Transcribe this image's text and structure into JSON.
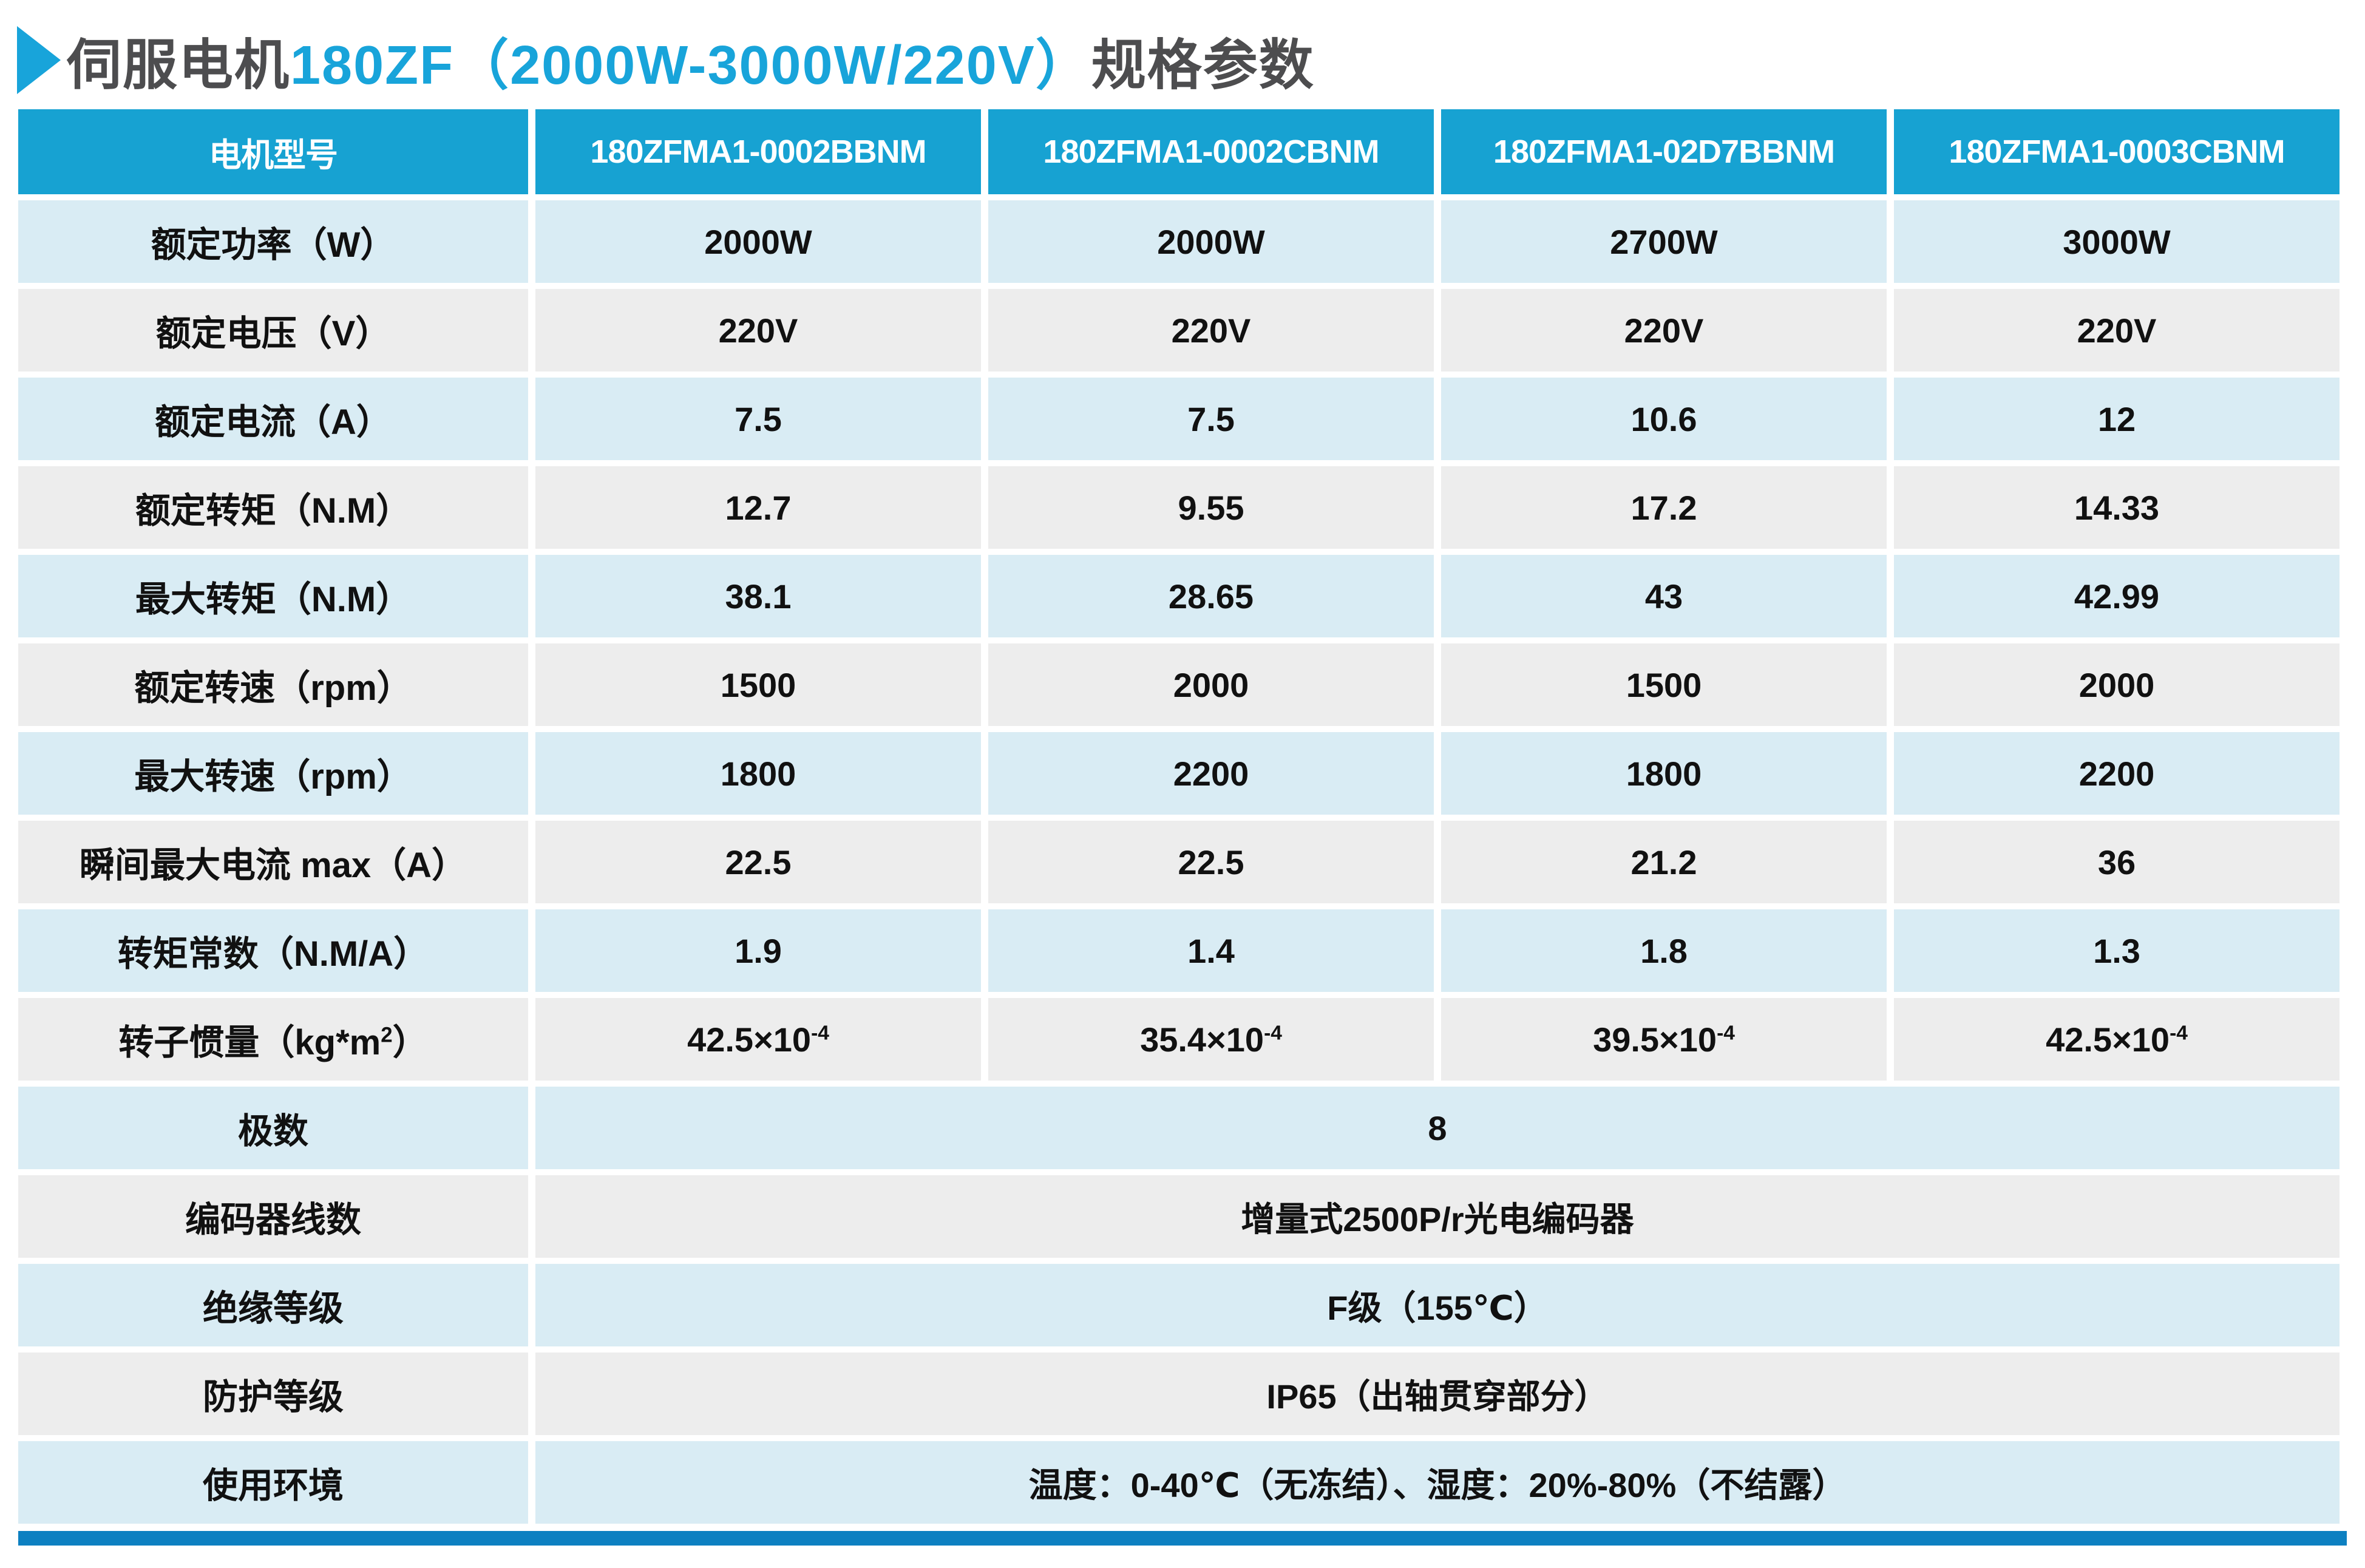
{
  "title": {
    "prefix": "伺服电机",
    "highlight": "180ZF（2000W-3000W/220V）",
    "suffix": "规格参数"
  },
  "colors": {
    "header_blue": "#17a2d2",
    "row_blue": "#d9ecf4",
    "row_gray": "#ededed",
    "accent_bar_blue": "#0d80c1",
    "title_gray": "#4d4d4f",
    "title_blue": "#18a4da",
    "cell_text": "#111111"
  },
  "table": {
    "header": [
      "电机型号",
      "180ZFMA1-0002BBNM",
      "180ZFMA1-0002CBNM",
      "180ZFMA1-02D7BBNM",
      "180ZFMA1-0003CBNM"
    ],
    "rows": [
      {
        "label": "额定功率（W）",
        "values": [
          "2000W",
          "2000W",
          "2700W",
          "3000W"
        ]
      },
      {
        "label": "额定电压（V）",
        "values": [
          "220V",
          "220V",
          "220V",
          "220V"
        ]
      },
      {
        "label": "额定电流（A）",
        "values": [
          "7.5",
          "7.5",
          "10.6",
          "12"
        ]
      },
      {
        "label": "额定转矩（N.M）",
        "values": [
          "12.7",
          "9.55",
          "17.2",
          "14.33"
        ]
      },
      {
        "label": "最大转矩（N.M）",
        "values": [
          "38.1",
          "28.65",
          "43",
          "42.99"
        ]
      },
      {
        "label": "额定转速（rpm）",
        "values": [
          "1500",
          "2000",
          "1500",
          "2000"
        ]
      },
      {
        "label": "最大转速（rpm）",
        "values": [
          "1800",
          "2200",
          "1800",
          "2200"
        ]
      },
      {
        "label": "瞬间最大电流 max（A）",
        "values": [
          "22.5",
          "22.5",
          "21.2",
          "36"
        ]
      },
      {
        "label": "转矩常数（N.M/A）",
        "values": [
          "1.9",
          "1.4",
          "1.8",
          "1.3"
        ]
      },
      {
        "label": "转子惯量（kg*m^{2}）",
        "values": [
          "42.5×10^{-4}",
          "35.4×10^{-4}",
          "39.5×10^{-4}",
          "42.5×10^{-4}"
        ]
      }
    ],
    "merged_rows": [
      {
        "label": "极数",
        "value": "8"
      },
      {
        "label": "编码器线数",
        "value": "增量式2500P/r光电编码器"
      },
      {
        "label": "绝缘等级",
        "value": "F级（155℃）"
      },
      {
        "label": "防护等级",
        "value": "IP65（出轴贯穿部分）"
      },
      {
        "label": "使用环境",
        "value": "温度：0-40℃（无冻结）、湿度：20%-80%（不结露）"
      }
    ]
  }
}
